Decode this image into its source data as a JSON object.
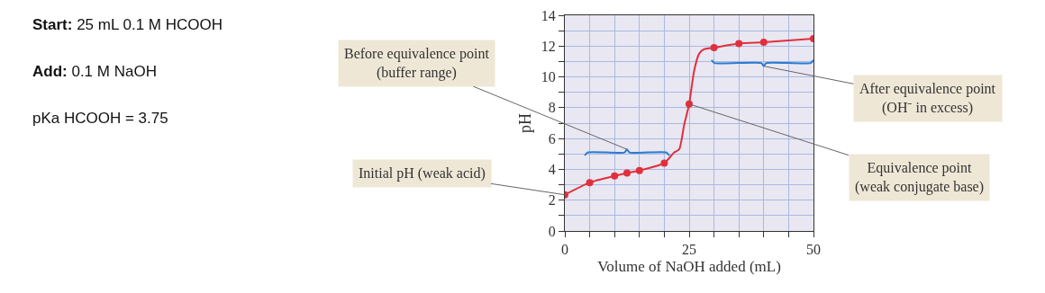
{
  "chart_data": {
    "type": "line",
    "xlabel": "Volume of NaOH added (mL)",
    "ylabel": "pH",
    "xlim": [
      0,
      50
    ],
    "xticks": [
      0,
      {
        "value": 5,
        "label": null
      },
      {
        "value": 10,
        "label": null
      },
      {
        "value": 15,
        "label": null
      },
      {
        "value": 20,
        "label": null
      },
      25,
      {
        "value": 30,
        "label": null
      },
      {
        "value": 35,
        "label": null
      },
      {
        "value": 40,
        "label": null
      },
      {
        "value": 45,
        "label": null
      },
      50
    ],
    "ylim": [
      0,
      14
    ],
    "yticks": [
      0,
      {
        "value": 1,
        "label": null
      },
      2,
      {
        "value": 3,
        "label": null
      },
      4,
      {
        "value": 5,
        "label": null
      },
      6,
      {
        "value": 7,
        "label": null
      },
      8,
      {
        "value": 9,
        "label": null
      },
      10,
      {
        "value": 11,
        "label": null
      },
      12,
      {
        "value": 13,
        "label": null
      },
      14
    ],
    "grid": true,
    "series": [
      {
        "type": "line",
        "color": "#e0303c",
        "marker": "none",
        "x": [
          0,
          5,
          10,
          12.5,
          15,
          20,
          22,
          23,
          24,
          25,
          26,
          27,
          28,
          30,
          35,
          40,
          50
        ],
        "values": [
          2.35,
          3.14,
          3.57,
          3.76,
          3.92,
          4.41,
          5.1,
          5.3,
          6.9,
          8.24,
          10.4,
          11.5,
          11.8,
          11.9,
          12.16,
          12.25,
          12.49
        ]
      },
      {
        "type": "scatter",
        "color": "#e0303c",
        "marker": "circle",
        "x": [
          0,
          5,
          10,
          12.5,
          15,
          20,
          25,
          30,
          35,
          40,
          50
        ],
        "values": [
          2.35,
          3.14,
          3.57,
          3.76,
          3.92,
          4.41,
          8.24,
          11.9,
          12.16,
          12.25,
          12.49
        ]
      },
      {
        "color": "#2a7bd0",
        "marker": "none",
        "x": [
          4,
          4.6,
          12,
          12.5,
          13,
          20.4,
          21
        ],
        "values": [
          4.9,
          5.1,
          5.1,
          5.3,
          5.1,
          5.1,
          4.9
        ]
      },
      {
        "color": "#2a7bd0",
        "marker": "none",
        "x": [
          29.5,
          30.1,
          39.5,
          40,
          40.5,
          49.4,
          50
        ],
        "values": [
          11.1,
          10.9,
          10.9,
          10.7,
          10.9,
          10.9,
          11.1
        ]
      }
    ],
    "annotations": [
      "Start: 25 mL 0.1 M HCOOH",
      "Add: 0.1 M NaOH",
      "pKa HCOOH = 3.75",
      {
        "text": "Before equivalence point\n(buffer range)",
        "x": 12.5,
        "y": 5.3
      },
      {
        "text": "Initial pH (weak acid)",
        "x": 0,
        "y": 2.35
      },
      {
        "text": "Equivalence point\n(weak conjugate base)",
        "x": 25,
        "y": 8.24
      },
      {
        "text": "After equivalence point\n(OH⁻ in excess)",
        "x": 40,
        "y": 10.7
      }
    ]
  }
}
